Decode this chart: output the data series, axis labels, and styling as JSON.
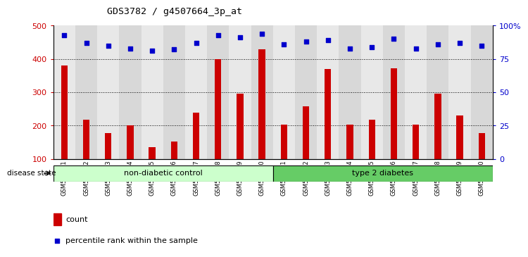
{
  "title": "GDS3782 / g4507664_3p_at",
  "samples": [
    "GSM524151",
    "GSM524152",
    "GSM524153",
    "GSM524154",
    "GSM524155",
    "GSM524156",
    "GSM524157",
    "GSM524158",
    "GSM524159",
    "GSM524160",
    "GSM524161",
    "GSM524162",
    "GSM524163",
    "GSM524164",
    "GSM524165",
    "GSM524166",
    "GSM524167",
    "GSM524168",
    "GSM524169",
    "GSM524170"
  ],
  "counts": [
    380,
    218,
    178,
    200,
    135,
    152,
    238,
    400,
    295,
    430,
    203,
    258,
    370,
    203,
    218,
    372,
    203,
    295,
    230,
    178
  ],
  "percentiles": [
    93,
    87,
    85,
    83,
    81,
    82,
    87,
    93,
    91,
    94,
    86,
    88,
    89,
    83,
    84,
    90,
    83,
    86,
    87,
    85
  ],
  "non_diabetic_count": 10,
  "bar_color": "#cc0000",
  "dot_color": "#0000cc",
  "col_bg_odd": "#e8e8e8",
  "col_bg_even": "#d8d8d8",
  "non_diabetic_color": "#ccffcc",
  "diabetic_color": "#66cc66",
  "ylim_left": [
    100,
    500
  ],
  "ylim_right": [
    0,
    100
  ],
  "yticks_left": [
    100,
    200,
    300,
    400,
    500
  ],
  "yticks_right": [
    0,
    25,
    50,
    75,
    100
  ],
  "ytick_labels_right": [
    "0",
    "25",
    "50",
    "75",
    "100%"
  ],
  "grid_lines": [
    200,
    300,
    400
  ],
  "disease_state_label": "disease state",
  "group1_label": "non-diabetic control",
  "group2_label": "type 2 diabetes",
  "legend_count_label": "count",
  "legend_pct_label": "percentile rank within the sample"
}
